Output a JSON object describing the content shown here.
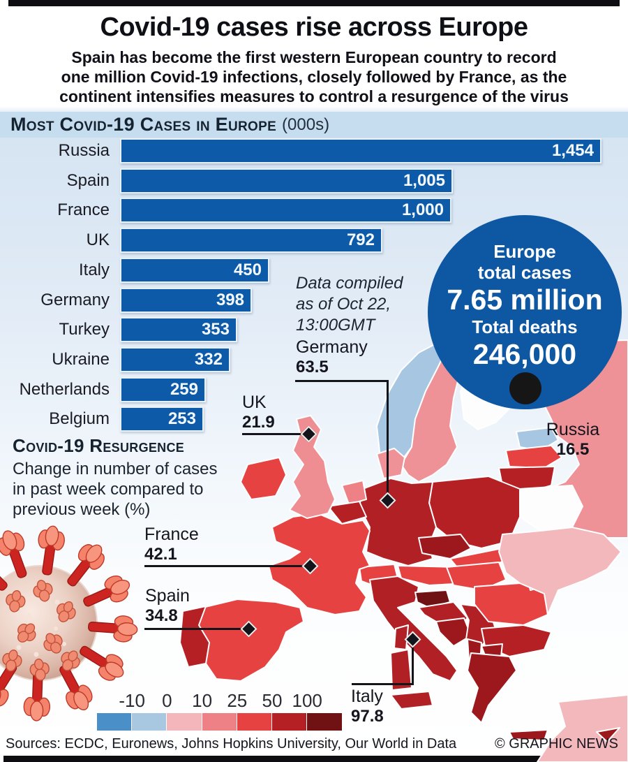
{
  "page": {
    "title": "Covid-19 cases rise across Europe",
    "subtitle_lines": [
      "Spain has become the first western European country to record",
      "one million Covid-19 infections, closely followed by France, as the",
      "continent intensifies measures to control a resurgence of the virus"
    ],
    "sources": "Sources: ECDC, Euronews, Johns Hopkins University, Our World in Data",
    "credit": "© GRAPHIC NEWS"
  },
  "bar_section": {
    "heading": "Most Covid-19 Cases in Europe",
    "heading_suffix": "(000s)",
    "note_lines": [
      "Data compiled",
      "as of Oct 22,",
      "13:00GMT"
    ]
  },
  "stat_circle": {
    "line1": "Europe",
    "line2": "total cases",
    "cases": "7.65 million",
    "line3": "Total deaths",
    "deaths": "246,000"
  },
  "resurgence": {
    "heading": "Covid-19 Resurgence",
    "desc_lines": [
      "Change in number of cases",
      "in past week compared to",
      "previous week (%)"
    ],
    "callouts": [
      {
        "id": "uk",
        "name": "UK",
        "value": "21.9"
      },
      {
        "id": "germany",
        "name": "Germany",
        "value": "63.5"
      },
      {
        "id": "france",
        "name": "France",
        "value": "42.1"
      },
      {
        "id": "spain",
        "name": "Spain",
        "value": "34.8"
      },
      {
        "id": "italy",
        "name": "Italy",
        "value": "97.8"
      },
      {
        "id": "russia",
        "name": "Russia",
        "value": "16.5"
      }
    ],
    "legend": {
      "ticks": [
        "-10",
        "0",
        "10",
        "25",
        "50",
        "100"
      ],
      "colors": [
        "#4a8fc7",
        "#a8c8e2",
        "#f4b6ba",
        "#ee8186",
        "#e64242",
        "#b52025",
        "#701114"
      ]
    }
  },
  "chart_data": [
    {
      "type": "bar",
      "title": "Most Covid-19 Cases in Europe (000s)",
      "orientation": "horizontal",
      "categories": [
        "Russia",
        "Spain",
        "France",
        "UK",
        "Italy",
        "Germany",
        "Turkey",
        "Ukraine",
        "Netherlands",
        "Belgium"
      ],
      "values": [
        1454,
        1005,
        1000,
        792,
        450,
        398,
        353,
        332,
        259,
        253
      ],
      "value_labels": [
        "1,454",
        "1,005",
        "1,000",
        "792",
        "450",
        "398",
        "353",
        "332",
        "259",
        "253"
      ],
      "bar_color": "#0d5ba8",
      "xlim": [
        0,
        1454
      ],
      "grid": false,
      "legend_position": "none"
    },
    {
      "type": "heatmap",
      "title": "Covid-19 Resurgence",
      "subtitle": "Change in number of cases in past week compared to previous week (%)",
      "points": [
        {
          "country": "UK",
          "value": 21.9
        },
        {
          "country": "Germany",
          "value": 63.5
        },
        {
          "country": "France",
          "value": 42.1
        },
        {
          "country": "Spain",
          "value": 34.8
        },
        {
          "country": "Italy",
          "value": 97.8
        },
        {
          "country": "Russia",
          "value": 16.5
        }
      ],
      "scale_ticks": [
        -10,
        0,
        10,
        25,
        50,
        100
      ],
      "scale_colors": [
        "#4a8fc7",
        "#a8c8e2",
        "#f4b6ba",
        "#ee8186",
        "#e64242",
        "#b52025",
        "#701114"
      ],
      "stats": {
        "europe_total_cases": "7.65 million",
        "europe_total_deaths": "246,000"
      },
      "note": "Data compiled as of Oct 22, 13:00GMT"
    }
  ]
}
